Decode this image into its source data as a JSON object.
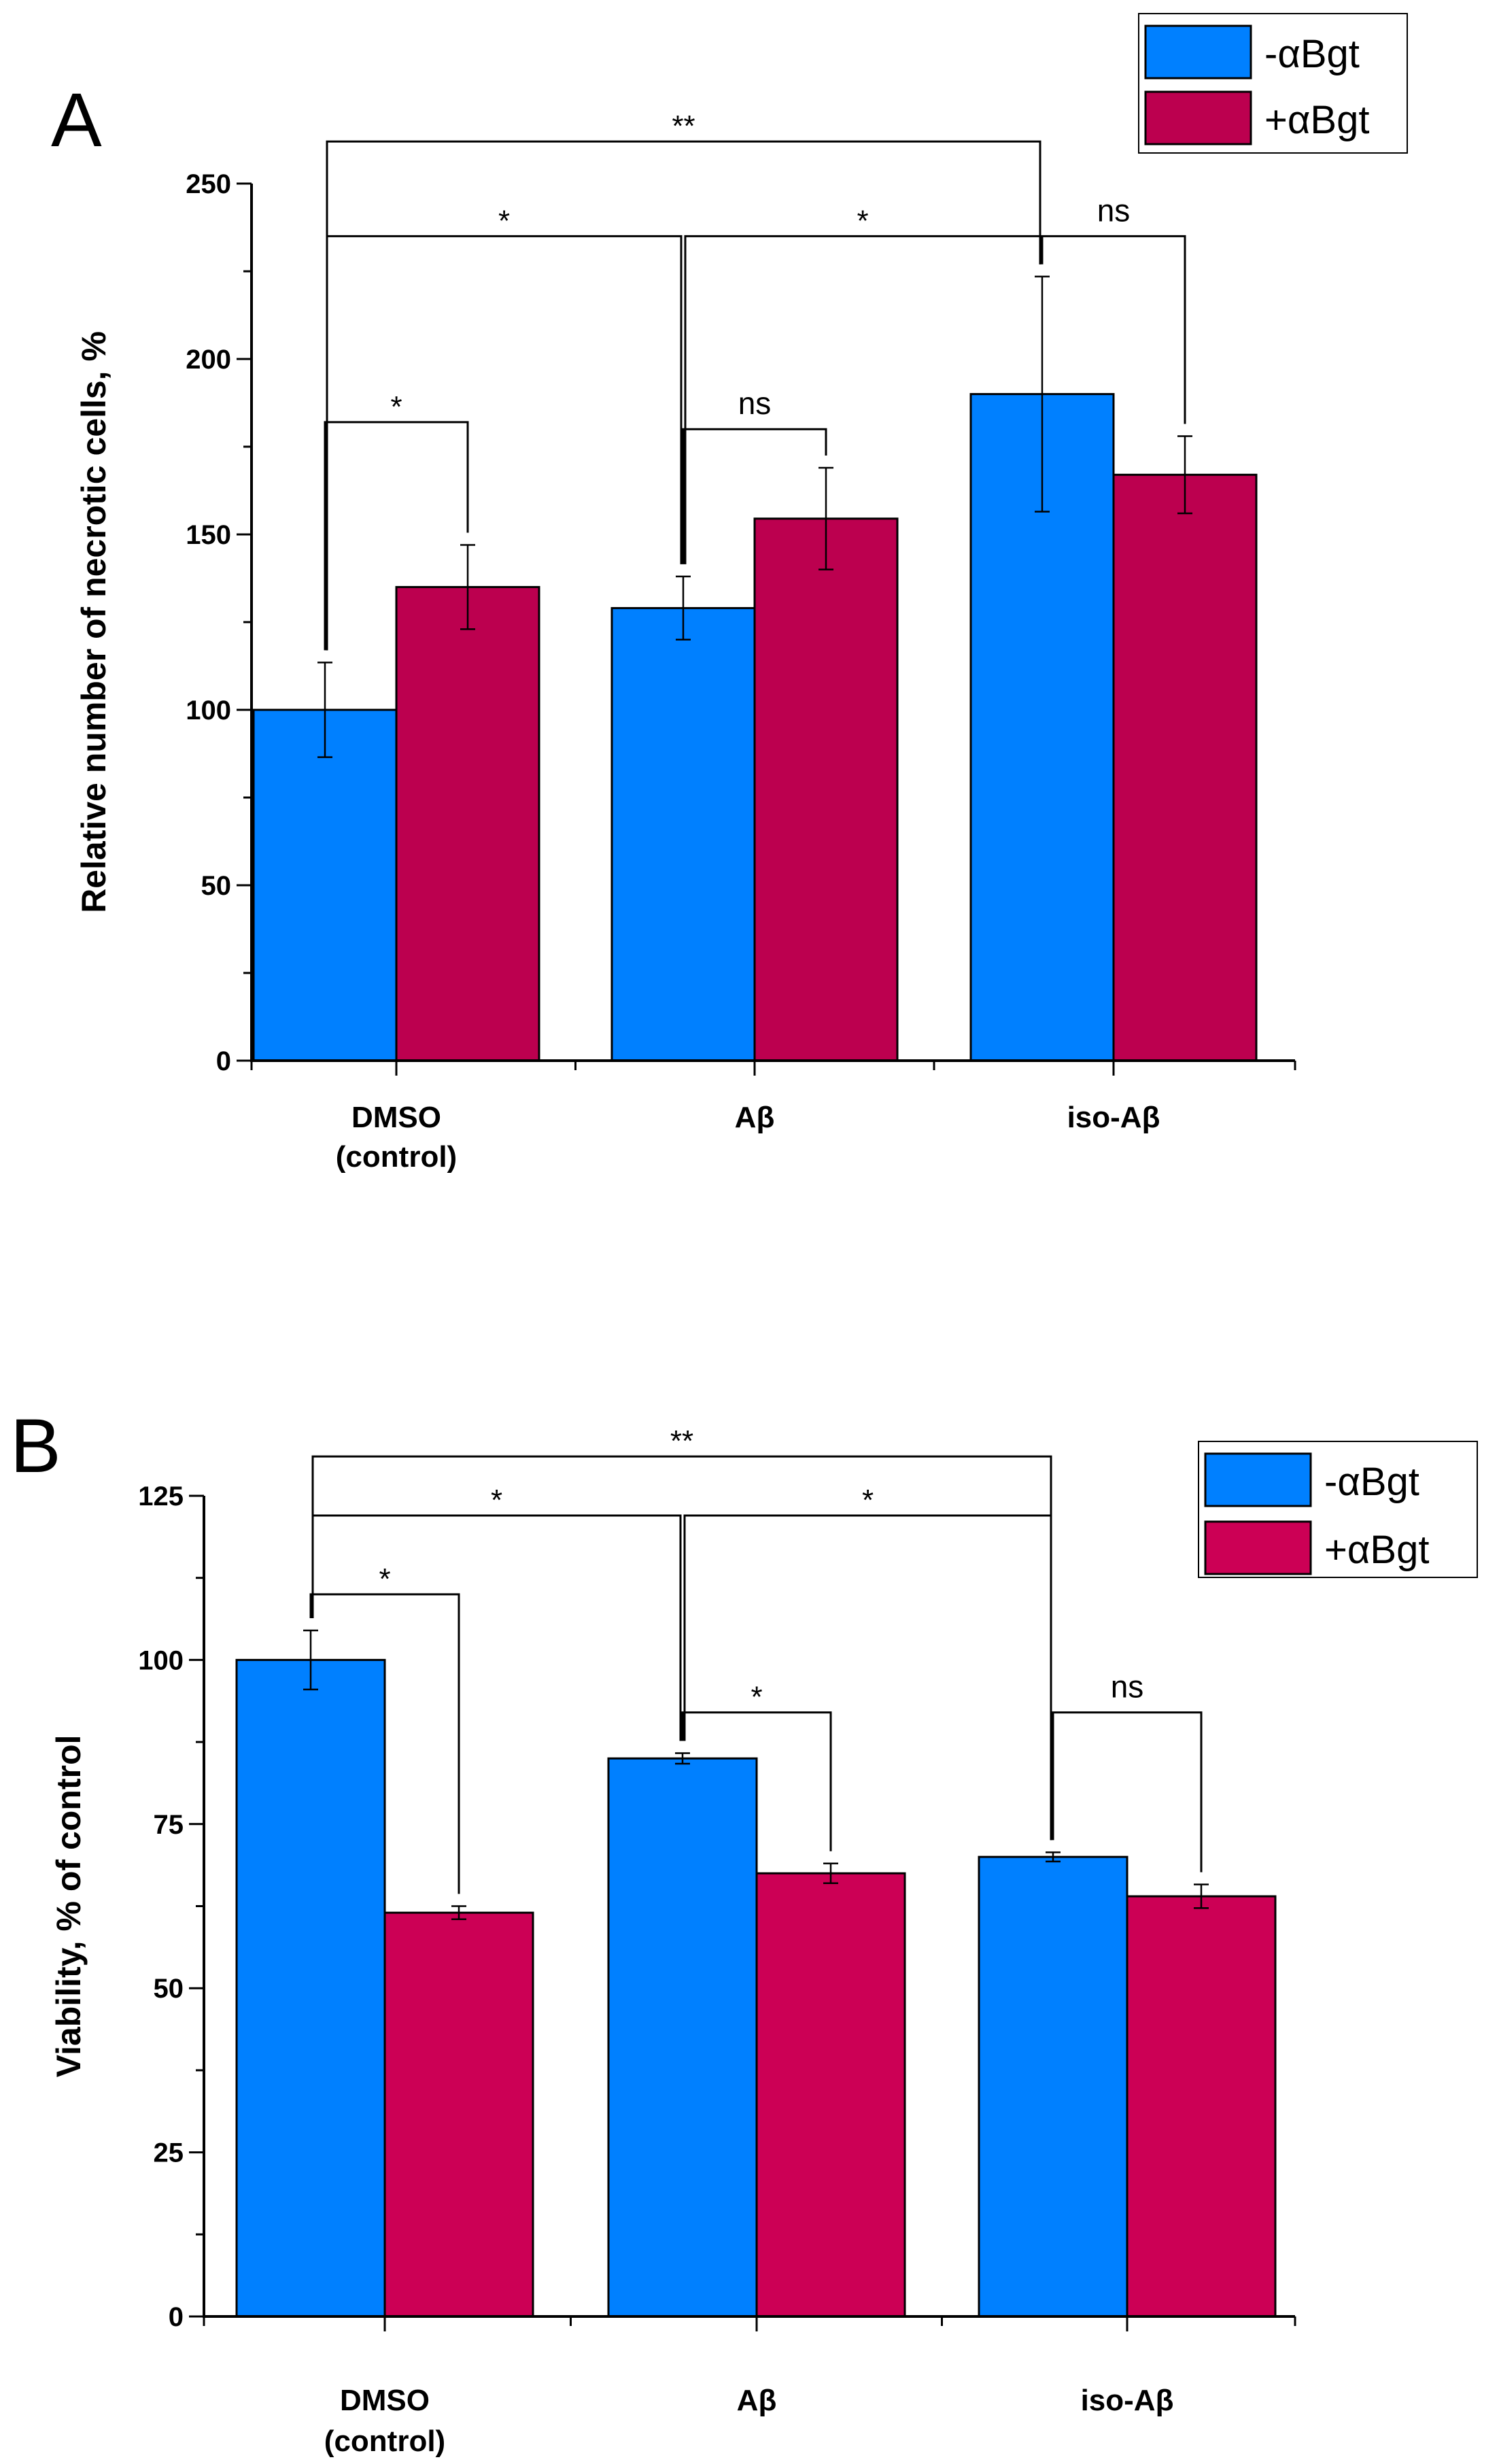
{
  "chart_data": [
    {
      "type": "bar",
      "panel_label": "A",
      "categories": [
        "DMSO (control)",
        "Aβ",
        "iso-Aβ"
      ],
      "category_lines": [
        [
          "DMSO",
          "(control)"
        ],
        [
          "Aβ"
        ],
        [
          "iso-Aβ"
        ]
      ],
      "series": [
        {
          "name": "-αBgt",
          "color": "#0080ff",
          "values": [
            100,
            129,
            190
          ],
          "errors": [
            13.5,
            9,
            33.5
          ]
        },
        {
          "name": "+αBgt",
          "color": "#bc004f",
          "values": [
            135,
            154.5,
            167
          ],
          "errors": [
            12,
            14.5,
            11
          ]
        }
      ],
      "ylabel": "Relative number of necrotic cells, %",
      "xlabel": "",
      "ylim": [
        0,
        250
      ],
      "yticks": [
        0,
        50,
        100,
        150,
        200,
        250
      ],
      "legend_position": "top-right",
      "significance": [
        {
          "from": [
            0,
            0
          ],
          "to": [
            2,
            0
          ],
          "label": "**",
          "level": 262
        },
        {
          "from": [
            0,
            0
          ],
          "to": [
            1,
            0
          ],
          "label": "*",
          "level": 235
        },
        {
          "from": [
            1,
            0
          ],
          "to": [
            2,
            0
          ],
          "label": "*",
          "level": 235
        },
        {
          "from": [
            2,
            0
          ],
          "to": [
            2,
            1
          ],
          "label": "ns",
          "level": 235
        },
        {
          "from": [
            0,
            0
          ],
          "to": [
            0,
            1
          ],
          "label": "*",
          "level": 182
        },
        {
          "from": [
            1,
            0
          ],
          "to": [
            1,
            1
          ],
          "label": "ns",
          "level": 180
        }
      ]
    },
    {
      "type": "bar",
      "panel_label": "B",
      "categories": [
        "DMSO (control)",
        "Aβ",
        "iso-Aβ"
      ],
      "category_lines": [
        [
          "DMSO",
          "(control)"
        ],
        [
          "Aβ"
        ],
        [
          "iso-Aβ"
        ]
      ],
      "series": [
        {
          "name": "-αBgt",
          "color": "#0080ff",
          "values": [
            100,
            85,
            70
          ],
          "errors": [
            4.5,
            0.8,
            0.7
          ]
        },
        {
          "name": "+αBgt",
          "color": "#cc0055",
          "values": [
            61.5,
            67.5,
            64
          ],
          "errors": [
            1,
            1.5,
            1.8
          ]
        }
      ],
      "ylabel": "Viability, % of control",
      "xlabel": "",
      "ylim": [
        0,
        125
      ],
      "yticks": [
        0,
        25,
        50,
        75,
        100,
        125
      ],
      "legend_position": "top-right",
      "significance": [
        {
          "from": [
            0,
            0
          ],
          "to": [
            2,
            0
          ],
          "label": "**",
          "level": 131
        },
        {
          "from": [
            0,
            0
          ],
          "to": [
            1,
            0
          ],
          "label": "*",
          "level": 122
        },
        {
          "from": [
            1,
            0
          ],
          "to": [
            2,
            0
          ],
          "label": "*",
          "level": 122
        },
        {
          "from": [
            0,
            0
          ],
          "to": [
            0,
            1
          ],
          "label": "*",
          "level": 110
        },
        {
          "from": [
            1,
            0
          ],
          "to": [
            1,
            1
          ],
          "label": "*",
          "level": 92
        },
        {
          "from": [
            2,
            0
          ],
          "to": [
            2,
            1
          ],
          "label": "ns",
          "level": 92
        }
      ]
    }
  ]
}
